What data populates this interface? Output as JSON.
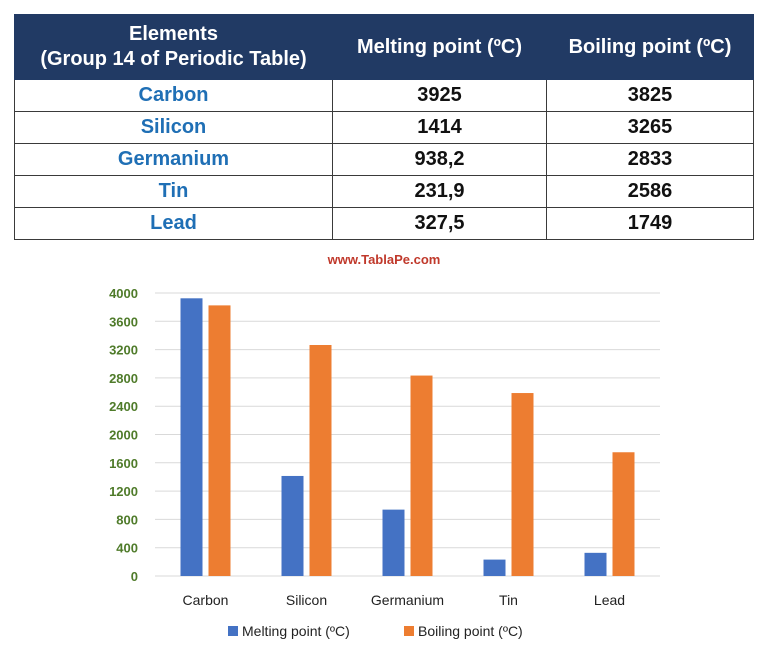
{
  "table": {
    "headers": [
      "Elements\n(Group 14 of Periodic Table)",
      "Melting point (ºC)",
      "Boiling point (ºC)"
    ],
    "header_first_line": "Elements",
    "header_second_line": "(Group 14 of Periodic Table)",
    "rows": [
      {
        "element": "Carbon",
        "melting": "3925",
        "boiling": "3825"
      },
      {
        "element": "Silicon",
        "melting": "1414",
        "boiling": "3265"
      },
      {
        "element": "Germanium",
        "melting": "938,2",
        "boiling": "2833"
      },
      {
        "element": "Tin",
        "melting": "231,9",
        "boiling": "2586"
      },
      {
        "element": "Lead",
        "melting": "327,5",
        "boiling": "1749"
      }
    ]
  },
  "watermark": "www.TablaPe.com",
  "colors": {
    "header_bg": "#213a64",
    "element_text": "#1f6fb5",
    "melting": "#4472c4",
    "boiling": "#ed7d31",
    "tick_text": "#4f7b2a",
    "watermark": "#c0392b"
  },
  "chart_data": {
    "type": "bar",
    "categories": [
      "Carbon",
      "Silicon",
      "Germanium",
      "Tin",
      "Lead"
    ],
    "series": [
      {
        "name": "Melting point (ºC)",
        "values": [
          3925,
          1414,
          938.2,
          231.9,
          327.5
        ],
        "color": "#4472c4"
      },
      {
        "name": "Boiling point (ºC)",
        "values": [
          3825,
          3265,
          2833,
          2586,
          1749
        ],
        "color": "#ed7d31"
      }
    ],
    "title": "",
    "xlabel": "",
    "ylabel": "",
    "ylim": [
      0,
      4000
    ],
    "yticks": [
      0,
      400,
      800,
      1200,
      1600,
      2000,
      2400,
      2800,
      3200,
      3600,
      4000
    ],
    "grid": true,
    "legend_position": "bottom"
  }
}
